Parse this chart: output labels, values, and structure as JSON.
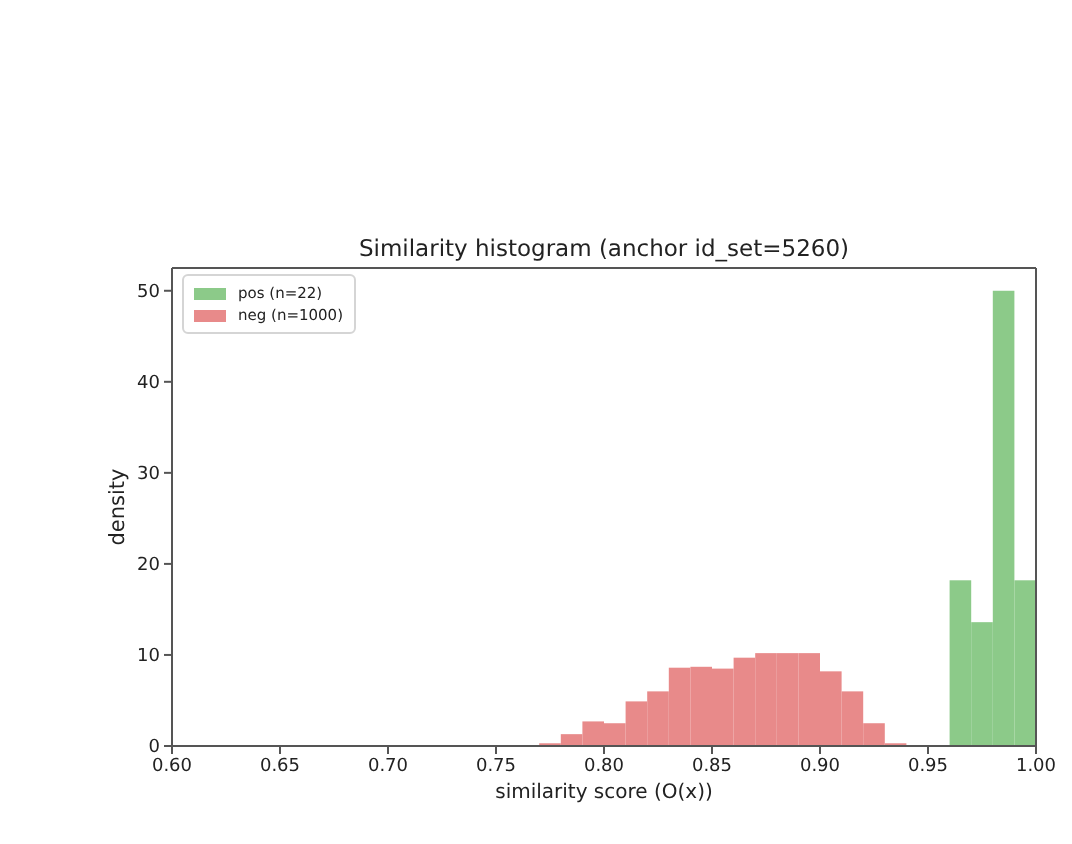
{
  "chart_data": {
    "type": "histogram",
    "title": "Similarity histogram (anchor id_set=5260)",
    "xlabel": "similarity score (O(x))",
    "ylabel": "density",
    "xlim": [
      0.6,
      1.0
    ],
    "xticks": [
      {
        "value": 0.6,
        "label": "0.60"
      },
      {
        "value": 0.65,
        "label": "0.65"
      },
      {
        "value": 0.7,
        "label": "0.70"
      },
      {
        "value": 0.75,
        "label": "0.75"
      },
      {
        "value": 0.8,
        "label": "0.80"
      },
      {
        "value": 0.85,
        "label": "0.85"
      },
      {
        "value": 0.9,
        "label": "0.90"
      },
      {
        "value": 0.95,
        "label": "0.95"
      },
      {
        "value": 1.0,
        "label": "1.00"
      }
    ],
    "ylim": [
      0,
      52.5
    ],
    "yticks": [
      0,
      10,
      20,
      30,
      40,
      50
    ],
    "legend": "top left",
    "bins": [
      0.77,
      0.78,
      0.79,
      0.8,
      0.81,
      0.82,
      0.83,
      0.84,
      0.85,
      0.86,
      0.87,
      0.88,
      0.89,
      0.9,
      0.91,
      0.92,
      0.93,
      0.94,
      0.95,
      0.96,
      0.97,
      0.98,
      0.99,
      1.0
    ],
    "series": [
      {
        "name": "pos (n=22)",
        "color": "#8cca89",
        "values": [
          null,
          null,
          null,
          null,
          null,
          null,
          null,
          null,
          null,
          null,
          null,
          null,
          null,
          null,
          null,
          null,
          null,
          null,
          null,
          18.2,
          13.6,
          50,
          18.2
        ]
      },
      {
        "name": "neg (n=1000)",
        "color": "#e88a8a",
        "values": [
          0.3,
          1.3,
          2.7,
          2.5,
          4.9,
          6.0,
          8.6,
          8.7,
          8.5,
          9.7,
          10.2,
          10.2,
          10.2,
          8.2,
          6.0,
          2.5,
          0.3,
          null,
          null,
          null,
          null,
          null,
          null
        ]
      }
    ]
  }
}
